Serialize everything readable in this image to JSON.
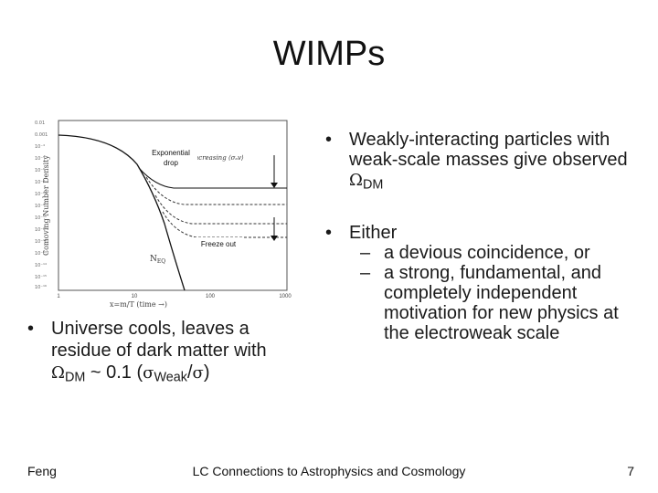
{
  "title": "WIMPs",
  "figure": {
    "y_axis_label": "Comoving Number Density",
    "x_axis_label": "x=m/T (time →)",
    "x_ticks": [
      "1",
      "10",
      "100",
      "1000"
    ],
    "annotations": {
      "exponential_drop": "Exponential drop",
      "increasing": "Increasing ⟨σₐv⟩",
      "freeze_out": "Freeze out",
      "n_eq": "N_EQ"
    }
  },
  "bullets_right": {
    "b1": {
      "text": "Weakly-interacting particles with weak-scale masses give observed ",
      "symbol": "Ω",
      "sub": "DM"
    },
    "b2": {
      "text": "Either",
      "sub1": "a devious coincidence, or",
      "sub2": "a strong, fundamental, and completely independent motivation for new physics at the electroweak scale"
    }
  },
  "bullet_left": {
    "line": "Universe cools, leaves a residue of dark matter with",
    "omega": "Ω",
    "dm": "DM",
    "approx": " ~ 0.1 (",
    "sigma1": "σ",
    "weak": "Weak",
    "slash": "/",
    "sigma2": "σ",
    "close": ")"
  },
  "footer": {
    "left": "Feng",
    "center": "LC Connections to Astrophysics and Cosmology",
    "right": "7"
  }
}
